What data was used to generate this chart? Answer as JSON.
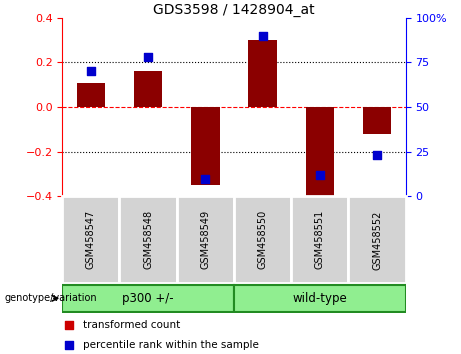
{
  "title": "GDS3598 / 1428904_at",
  "samples": [
    "GSM458547",
    "GSM458548",
    "GSM458549",
    "GSM458550",
    "GSM458551",
    "GSM458552"
  ],
  "red_bars": [
    0.11,
    0.16,
    -0.35,
    0.3,
    -0.41,
    -0.12
  ],
  "blue_squares_pct": [
    70,
    78,
    10,
    90,
    12,
    23
  ],
  "groups": [
    {
      "label": "p300 +/-",
      "start": 0,
      "end": 3,
      "color": "#90EE90"
    },
    {
      "label": "wild-type",
      "start": 3,
      "end": 6,
      "color": "#90EE90"
    }
  ],
  "ylim": [
    -0.4,
    0.4
  ],
  "yticks": [
    -0.4,
    -0.2,
    0.0,
    0.2,
    0.4
  ],
  "right_yticks": [
    0,
    25,
    50,
    75,
    100
  ],
  "bar_color": "#8B0000",
  "square_color": "#0000CD",
  "bar_width": 0.5,
  "square_size": 35,
  "legend_items": [
    {
      "label": "transformed count",
      "color": "#CC0000"
    },
    {
      "label": "percentile rank within the sample",
      "color": "#0000CC"
    }
  ]
}
